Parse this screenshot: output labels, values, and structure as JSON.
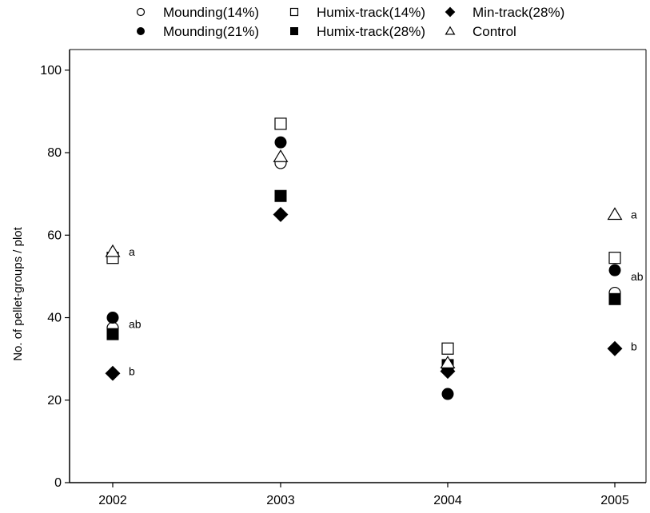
{
  "chart_data": {
    "type": "scatter",
    "title": "",
    "xlabel": "",
    "ylabel": "No. of pellet-groups / plot",
    "categories": [
      "2002",
      "2003",
      "2004",
      "2005"
    ],
    "ylim": [
      0,
      105
    ],
    "yticks": [
      0,
      20,
      40,
      60,
      80,
      100
    ],
    "grid": false,
    "legend_placement": "top",
    "series": [
      {
        "name": "Mounding(14%)",
        "marker": "circle-open",
        "values": [
          37.5,
          77.5,
          27.5,
          46
        ]
      },
      {
        "name": "Mounding(21%)",
        "marker": "circle-filled",
        "values": [
          40,
          82.5,
          21.5,
          51.5
        ]
      },
      {
        "name": "Humix-track(14%)",
        "marker": "square-open",
        "values": [
          54.5,
          87,
          32.5,
          54.5
        ]
      },
      {
        "name": "Humix-track(28%)",
        "marker": "square-filled",
        "values": [
          36,
          69.5,
          28.5,
          44.5
        ]
      },
      {
        "name": "Min-track(28%)",
        "marker": "diamond-filled",
        "values": [
          26.5,
          65,
          27,
          32.5
        ]
      },
      {
        "name": "Control",
        "marker": "triangle-open",
        "values": [
          56,
          79,
          29,
          65
        ]
      }
    ],
    "annotations": [
      {
        "category": "2002",
        "y": 56,
        "text": "a"
      },
      {
        "category": "2002",
        "y": 38.5,
        "text": "ab"
      },
      {
        "category": "2002",
        "y": 27,
        "text": "b"
      },
      {
        "category": "2005",
        "y": 65,
        "text": "a"
      },
      {
        "category": "2005",
        "y": 50,
        "text": "ab"
      },
      {
        "category": "2005",
        "y": 33,
        "text": "b"
      }
    ]
  }
}
